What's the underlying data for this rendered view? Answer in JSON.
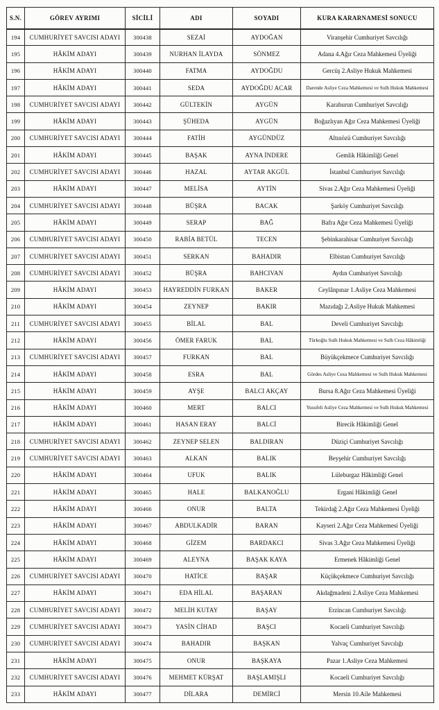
{
  "colors": {
    "paper": "#fcfcfa",
    "ink": "#161616",
    "border": "#262626"
  },
  "table": {
    "headers": [
      "S.N.",
      "GÖREV AYRIMI",
      "SİCİLİ",
      "ADI",
      "SOYADI",
      "KURA KARARNAMESİ SONUCU"
    ],
    "columns": [
      "sn",
      "gorev",
      "sicil",
      "adi",
      "soyadi",
      "sonuc"
    ],
    "rows": [
      {
        "sn": "194",
        "gorev": "CUMHURİYET SAVCISI ADAYI",
        "sicil": "300438",
        "adi": "SEZAİ",
        "soyadi": "AYDOĞAN",
        "sonuc": "Viranşehir Cumhuriyet Savcılığı"
      },
      {
        "sn": "195",
        "gorev": "HÂKİM ADAYI",
        "sicil": "300439",
        "adi": "NURHAN İLAYDA",
        "soyadi": "SÖNMEZ",
        "sonuc": "Adana 4.Ağır Ceza Mahkemesi Üyeliği"
      },
      {
        "sn": "196",
        "gorev": "HÂKİM ADAYI",
        "sicil": "300440",
        "adi": "FATMA",
        "soyadi": "AYDOĞDU",
        "sonuc": "Gercüş 2.Asliye Hukuk Mahkemesi"
      },
      {
        "sn": "197",
        "gorev": "HÂKİM ADAYI",
        "sicil": "300441",
        "adi": "SEDA",
        "soyadi": "AYDOĞDU ACAR",
        "sonuc": "Darende Asliye Ceza Mahkemesi ve Sulh Hukuk Mahkemesi"
      },
      {
        "sn": "198",
        "gorev": "CUMHURİYET SAVCISI ADAYI",
        "sicil": "300442",
        "adi": "GÜLTEKİN",
        "soyadi": "AYGÜN",
        "sonuc": "Karaburun Cumhuriyet Savcılığı"
      },
      {
        "sn": "199",
        "gorev": "HÂKİM ADAYI",
        "sicil": "300443",
        "adi": "ŞÜHEDA",
        "soyadi": "AYGÜN",
        "sonuc": "Boğazlıyan Ağır Ceza Mahkemesi Üyeliği"
      },
      {
        "sn": "200",
        "gorev": "CUMHURİYET SAVCISI ADAYI",
        "sicil": "300444",
        "adi": "FATİH",
        "soyadi": "AYGÜNDÜZ",
        "sonuc": "Altınözü Cumhuriyet Savcılığı"
      },
      {
        "sn": "201",
        "gorev": "HÂKİM ADAYI",
        "sicil": "300445",
        "adi": "BAŞAK",
        "soyadi": "AYNA İNDERE",
        "sonuc": "Gemlik Hâkimliği Genel"
      },
      {
        "sn": "202",
        "gorev": "CUMHURİYET SAVCISI ADAYI",
        "sicil": "300446",
        "adi": "HAZAL",
        "soyadi": "AYTAR AKGÜL",
        "sonuc": "İstanbul Cumhuriyet Savcılığı"
      },
      {
        "sn": "203",
        "gorev": "HÂKİM ADAYI",
        "sicil": "300447",
        "adi": "MELİSA",
        "soyadi": "AYTİN",
        "sonuc": "Sivas 2.Ağır Ceza Mahkemesi Üyeliği"
      },
      {
        "sn": "204",
        "gorev": "CUMHURİYET SAVCISI ADAYI",
        "sicil": "300448",
        "adi": "BÜŞRA",
        "soyadi": "BACAK",
        "sonuc": "Şarköy Cumhuriyet Savcılığı"
      },
      {
        "sn": "205",
        "gorev": "HÂKİM ADAYI",
        "sicil": "300449",
        "adi": "SERAP",
        "soyadi": "BAĞ",
        "sonuc": "Bafra Ağır Ceza Mahkemesi Üyeliği"
      },
      {
        "sn": "206",
        "gorev": "CUMHURİYET SAVCISI ADAYI",
        "sicil": "300450",
        "adi": "RABİA BETÜL",
        "soyadi": "TECEN",
        "sonuc": "Şebinkarahisar Cumhuriyet Savcılığı"
      },
      {
        "sn": "207",
        "gorev": "CUMHURİYET SAVCISI ADAYI",
        "sicil": "300451",
        "adi": "SERKAN",
        "soyadi": "BAHADIR",
        "sonuc": "Elbistan Cumhuriyet Savcılığı"
      },
      {
        "sn": "208",
        "gorev": "CUMHURİYET SAVCISI ADAYI",
        "sicil": "300452",
        "adi": "BÜŞRA",
        "soyadi": "BAHCIVAN",
        "sonuc": "Aydın Cumhuriyet Savcılığı"
      },
      {
        "sn": "209",
        "gorev": "HÂKİM ADAYI",
        "sicil": "300453",
        "adi": "HAYREDDİN FURKAN",
        "soyadi": "BAKER",
        "sonuc": "Ceylânpınar 1.Asliye Ceza Mahkemesi"
      },
      {
        "sn": "210",
        "gorev": "HÂKİM ADAYI",
        "sicil": "300454",
        "adi": "ZEYNEP",
        "soyadi": "BAKIR",
        "sonuc": "Mazıdağı 2.Asliye Hukuk Mahkemesi"
      },
      {
        "sn": "211",
        "gorev": "CUMHURİYET SAVCISI ADAYI",
        "sicil": "300455",
        "adi": "BİLAL",
        "soyadi": "BAL",
        "sonuc": "Develi Cumhuriyet Savcılığı"
      },
      {
        "sn": "212",
        "gorev": "HÂKİM ADAYI",
        "sicil": "300456",
        "adi": "ÖMER FARUK",
        "soyadi": "BAL",
        "sonuc": "Türkoğlu Sulh Hukuk Mahkemesi ve Sulh Ceza Hâkimliği"
      },
      {
        "sn": "213",
        "gorev": "CUMHURİYET SAVCISI ADAYI",
        "sicil": "300457",
        "adi": "FURKAN",
        "soyadi": "BAL",
        "sonuc": "Büyükçekmece Cumhuriyet Savcılığı"
      },
      {
        "sn": "214",
        "gorev": "HÂKİM ADAYI",
        "sicil": "300458",
        "adi": "ESRA",
        "soyadi": "BAL",
        "sonuc": "Gördes Asliye Ceza Mahkemesi ve Sulh Hukuk Mahkemesi"
      },
      {
        "sn": "215",
        "gorev": "HÂKİM ADAYI",
        "sicil": "300459",
        "adi": "AYŞE",
        "soyadi": "BALCI AKÇAY",
        "sonuc": "Bursa 8.Ağır Ceza Mahkemesi Üyeliği"
      },
      {
        "sn": "216",
        "gorev": "HÂKİM ADAYI",
        "sicil": "300460",
        "adi": "MERT",
        "soyadi": "BALCI",
        "sonuc": "Yusufeli Asliye Ceza Mahkemesi ve Sulh Hukuk Mahkemesi"
      },
      {
        "sn": "217",
        "gorev": "HÂKİM ADAYI",
        "sicil": "300461",
        "adi": "HASAN ERAY",
        "soyadi": "BALCİ",
        "sonuc": "Birecik Hâkimliği Genel"
      },
      {
        "sn": "218",
        "gorev": "CUMHURİYET SAVCISI ADAYI",
        "sicil": "300462",
        "adi": "ZEYNEP SELEN",
        "soyadi": "BALDIRAN",
        "sonuc": "Düziçi Cumhuriyet Savcılığı"
      },
      {
        "sn": "219",
        "gorev": "CUMHURİYET SAVCISI ADAYI",
        "sicil": "300463",
        "adi": "ALKAN",
        "soyadi": "BALIK",
        "sonuc": "Beyşehir Cumhuriyet Savcılığı"
      },
      {
        "sn": "220",
        "gorev": "HÂKİM ADAYI",
        "sicil": "300464",
        "adi": "UFUK",
        "soyadi": "BALIK",
        "sonuc": "Lüleburgaz Hâkimliği Genel"
      },
      {
        "sn": "221",
        "gorev": "HÂKİM ADAYI",
        "sicil": "300465",
        "adi": "HALE",
        "soyadi": "BALKANOĞLU",
        "sonuc": "Ergani Hâkimliği Genel"
      },
      {
        "sn": "222",
        "gorev": "HÂKİM ADAYI",
        "sicil": "300466",
        "adi": "ONUR",
        "soyadi": "BALTA",
        "sonuc": "Tekirdağ 2.Ağır Ceza Mahkemesi Üyeliği"
      },
      {
        "sn": "223",
        "gorev": "HÂKİM ADAYI",
        "sicil": "300467",
        "adi": "ABDULKADİR",
        "soyadi": "BARAN",
        "sonuc": "Kayseri 2.Ağır Ceza Mahkemesi Üyeliği"
      },
      {
        "sn": "224",
        "gorev": "HÂKİM ADAYI",
        "sicil": "300468",
        "adi": "GİZEM",
        "soyadi": "BARDAKCI",
        "sonuc": "Sivas 3.Ağır Ceza Mahkemesi Üyeliği"
      },
      {
        "sn": "225",
        "gorev": "HÂKİM ADAYI",
        "sicil": "300469",
        "adi": "ALEYNA",
        "soyadi": "BAŞAK KAYA",
        "sonuc": "Ermenek Hâkimliği Genel"
      },
      {
        "sn": "226",
        "gorev": "CUMHURİYET SAVCISI ADAYI",
        "sicil": "300470",
        "adi": "HATİCE",
        "soyadi": "BAŞAR",
        "sonuc": "Küçükçekmece Cumhuriyet Savcılığı"
      },
      {
        "sn": "227",
        "gorev": "HÂKİM ADAYI",
        "sicil": "300471",
        "adi": "EDA HİLAL",
        "soyadi": "BAŞARAN",
        "sonuc": "Akdağmadeni 2.Asliye Ceza Mahkemesi"
      },
      {
        "sn": "228",
        "gorev": "CUMHURİYET SAVCISI ADAYI",
        "sicil": "300472",
        "adi": "MELİH KUTAY",
        "soyadi": "BAŞAY",
        "sonuc": "Erzincan Cumhuriyet Savcılığı"
      },
      {
        "sn": "229",
        "gorev": "CUMHURİYET SAVCISI ADAYI",
        "sicil": "300473",
        "adi": "YASİN CİHAD",
        "soyadi": "BAŞCI",
        "sonuc": "Kocaeli Cumhuriyet Savcılığı"
      },
      {
        "sn": "230",
        "gorev": "CUMHURİYET SAVCISI ADAYI",
        "sicil": "300474",
        "adi": "BAHADIR",
        "soyadi": "BAŞKAN",
        "sonuc": "Yalvaç Cumhuriyet Savcılığı"
      },
      {
        "sn": "231",
        "gorev": "HÂKİM ADAYI",
        "sicil": "300475",
        "adi": "ONUR",
        "soyadi": "BAŞKAYA",
        "sonuc": "Pazar 1.Asliye Ceza Mahkemesi"
      },
      {
        "sn": "232",
        "gorev": "CUMHURİYET SAVCISI ADAYI",
        "sicil": "300476",
        "adi": "MEHMET KÜRŞAT",
        "soyadi": "BAŞLAMIŞLI",
        "sonuc": "Kocaeli Cumhuriyet Savcılığı"
      },
      {
        "sn": "233",
        "gorev": "HÂKİM ADAYI",
        "sicil": "300477",
        "adi": "DİLARA",
        "soyadi": "DEMİRCİ",
        "sonuc": "Mersin 10.Aile Mahkemesi"
      }
    ]
  }
}
